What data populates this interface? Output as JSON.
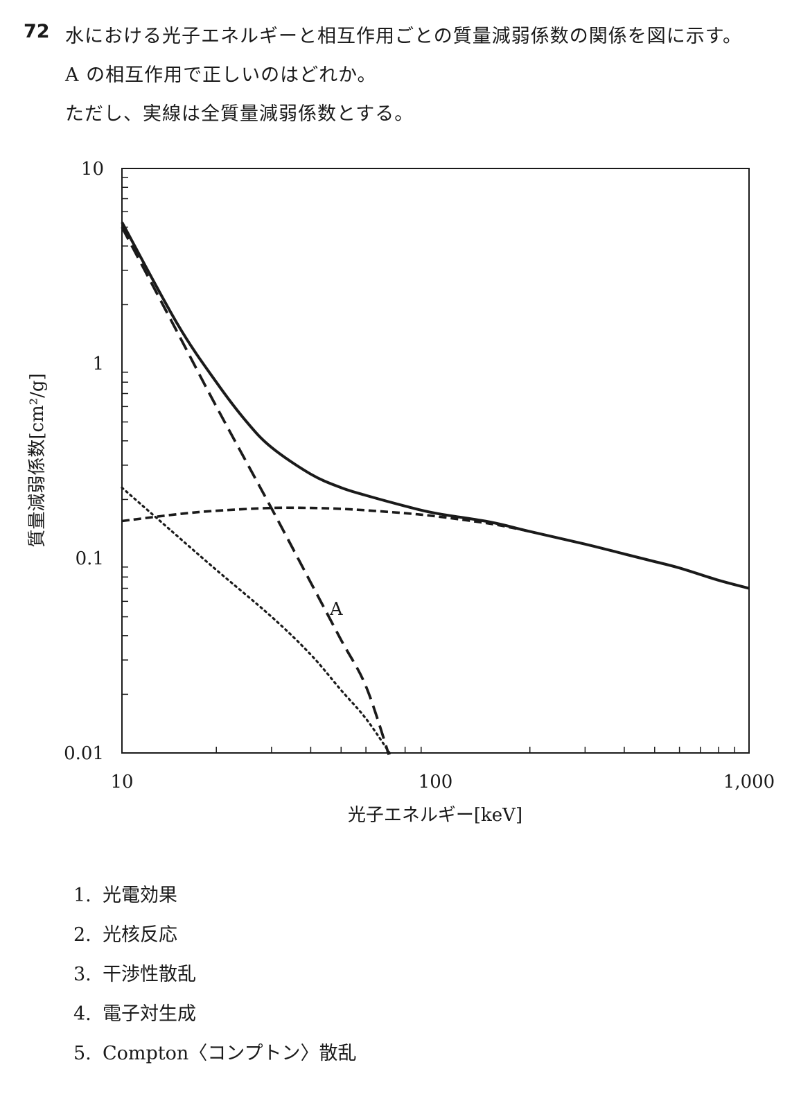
{
  "question": {
    "number": "72",
    "lines": [
      "水における光子エネルギーと相互作用ごとの質量減弱係数の関係を図に示す。",
      "A の相互作用で正しいのはどれか。",
      "ただし、実線は全質量減弱係数とする。"
    ]
  },
  "chart_data": {
    "type": "line",
    "xlabel": "光子エネルギー[keV]",
    "ylabel": "質量減弱係数[cm²/g]",
    "xscale": "log",
    "yscale": "log",
    "xlim": [
      10,
      1000
    ],
    "ylim": [
      0.01,
      10
    ],
    "x_ticks": [
      10,
      100,
      1000
    ],
    "x_tick_labels": [
      "10",
      "100",
      "1,000"
    ],
    "y_ticks": [
      0.01,
      0.1,
      1,
      10
    ],
    "y_tick_labels": [
      "0.01",
      "0.1",
      "1",
      "10"
    ],
    "grid": false,
    "annotations": [
      {
        "text": "A",
        "x": 46,
        "y": 0.055
      }
    ],
    "series": [
      {
        "style": "solid",
        "x": [
          10,
          15,
          20,
          25,
          30,
          40,
          50,
          60,
          80,
          100,
          150,
          200,
          300,
          400,
          500,
          600,
          800,
          1000
        ],
        "y": [
          5.3,
          1.6,
          0.8,
          0.5,
          0.37,
          0.27,
          0.23,
          0.21,
          0.185,
          0.17,
          0.153,
          0.137,
          0.118,
          0.105,
          0.096,
          0.089,
          0.077,
          0.07
        ]
      },
      {
        "style": "long-dash",
        "label": "A",
        "x": [
          10,
          15,
          20,
          30,
          40,
          50,
          60,
          71
        ],
        "y": [
          5.0,
          1.45,
          0.6,
          0.18,
          0.075,
          0.038,
          0.022,
          0.0098
        ]
      },
      {
        "style": "short-dash",
        "x": [
          10,
          15,
          20,
          30,
          40,
          50,
          60,
          80,
          100,
          150,
          200
        ],
        "y": [
          0.155,
          0.168,
          0.175,
          0.181,
          0.181,
          0.179,
          0.176,
          0.17,
          0.164,
          0.15,
          0.137
        ]
      },
      {
        "style": "dotted",
        "x": [
          10,
          15,
          20,
          30,
          40,
          50,
          60,
          72
        ],
        "y": [
          0.23,
          0.13,
          0.087,
          0.05,
          0.032,
          0.021,
          0.015,
          0.0098
        ]
      }
    ]
  },
  "choices": [
    {
      "num": "1.",
      "text": "光電効果"
    },
    {
      "num": "2.",
      "text": "光核反応"
    },
    {
      "num": "3.",
      "text": "干渉性散乱"
    },
    {
      "num": "4.",
      "text": "電子対生成"
    },
    {
      "num": "5.",
      "text": "Compton〈コンプトン〉散乱"
    }
  ]
}
